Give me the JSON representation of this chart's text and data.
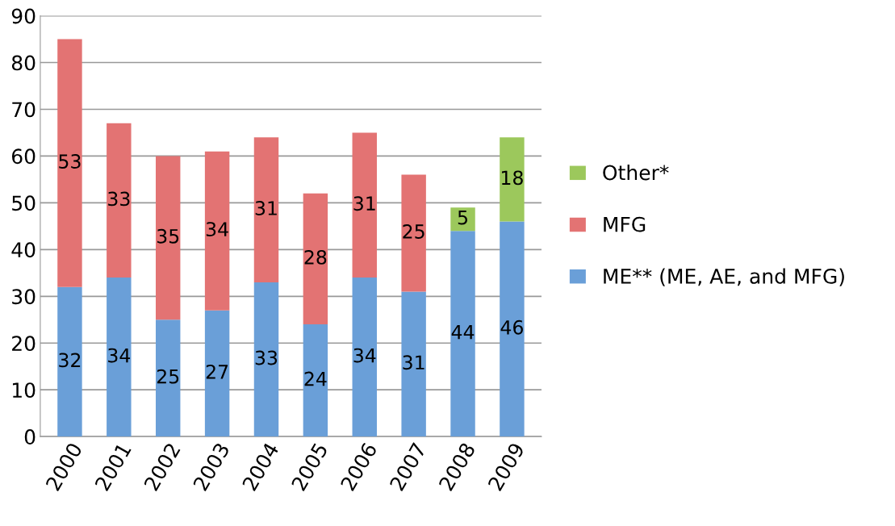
{
  "chart_data": {
    "type": "bar",
    "stacked": true,
    "categories": [
      "2000",
      "2001",
      "2002",
      "2003",
      "2004",
      "2005",
      "2006",
      "2007",
      "2008",
      "2009"
    ],
    "series": [
      {
        "name": "ME** (ME, AE, and MFG)",
        "color": "#6a9fd8",
        "values": [
          32,
          34,
          25,
          27,
          33,
          24,
          34,
          31,
          44,
          46
        ]
      },
      {
        "name": "MFG",
        "color": "#e37373",
        "values": [
          53,
          33,
          35,
          34,
          31,
          28,
          31,
          25,
          null,
          null
        ]
      },
      {
        "name": "Other*",
        "color": "#9cc85c",
        "values": [
          null,
          null,
          null,
          null,
          null,
          null,
          null,
          null,
          5,
          18
        ]
      }
    ],
    "ylim": [
      0,
      90
    ],
    "yticks": [
      0,
      10,
      20,
      30,
      40,
      50,
      60,
      70,
      80,
      90
    ],
    "grid": "y",
    "legend": "right",
    "data_labels": true
  }
}
